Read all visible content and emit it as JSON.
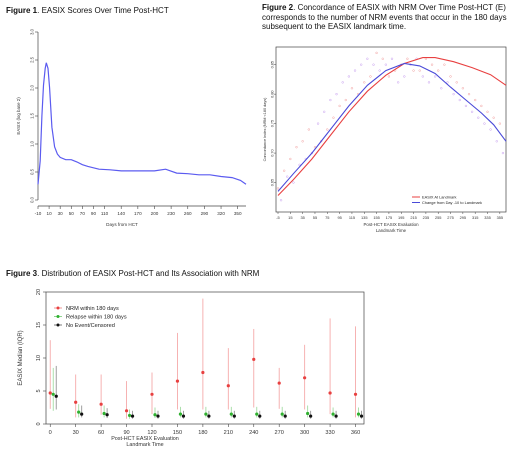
{
  "figure1": {
    "caption_label": "Figure 1",
    "caption_text": ". EASIX Scores Over Time Post-HCT",
    "chart_data": {
      "type": "line",
      "xlabel": "Days from HCT",
      "ylabel": "EASIX (log base 2)",
      "x_ticks": [
        "-10",
        "10",
        "30",
        "50",
        "70",
        "90",
        "110",
        "140",
        "170",
        "200",
        "230",
        "260",
        "290",
        "320",
        "350"
      ],
      "y_ticks": [
        "0.0",
        "0.5",
        "1.0",
        "1.5",
        "2.0",
        "2.5",
        "3.0"
      ],
      "xlim": [
        -10,
        365
      ],
      "ylim": [
        0,
        3.0
      ],
      "series": [
        {
          "color": "#5b5bf0",
          "x": [
            -10,
            -6,
            -3,
            0,
            3,
            5,
            8,
            11,
            15,
            20,
            25,
            30,
            40,
            50,
            60,
            70,
            80,
            100,
            120,
            140,
            160,
            180,
            200,
            220,
            240,
            260,
            280,
            300,
            320,
            340,
            355,
            365
          ],
          "y": [
            0.28,
            0.7,
            1.5,
            2.05,
            2.35,
            2.45,
            2.35,
            2.0,
            1.3,
            0.95,
            0.82,
            0.76,
            0.72,
            0.72,
            0.68,
            0.63,
            0.6,
            0.55,
            0.54,
            0.52,
            0.52,
            0.52,
            0.52,
            0.55,
            0.48,
            0.47,
            0.45,
            0.45,
            0.42,
            0.4,
            0.35,
            0.28
          ]
        }
      ]
    }
  },
  "figure2": {
    "caption_label": "Figure 2",
    "caption_text": ". Concordance of EASIX with NRM Over Time Post-HCT (E) corresponds to the number of NRM events that occur in the 180 days subsequent to the EASIX landmark time.",
    "chart_data": {
      "type": "line",
      "xlabel": "Post-HCT EASIX Evaluation",
      "xlabel2": "Landmark Time",
      "ylabel": "Concordance Index (NRM <180 days)",
      "x_ticks": [
        "-5",
        "15",
        "35",
        "55",
        "75",
        "95",
        "115",
        "135",
        "155",
        "175",
        "195",
        "215",
        "235",
        "255",
        "275",
        "295",
        "315",
        "335",
        "355"
      ],
      "y_ticks": [
        "0.65",
        "0.70",
        "0.75",
        "0.80",
        "0.85"
      ],
      "xlim": [
        -5,
        365
      ],
      "ylim": [
        0.6,
        0.88
      ],
      "legend_position": "bottom-right",
      "series": [
        {
          "name": "EASIX At Landmark",
          "color": "#e84040",
          "x": [
            -5,
            20,
            50,
            80,
            110,
            140,
            170,
            200,
            230,
            250,
            280,
            310,
            340,
            365
          ],
          "y": [
            0.628,
            0.655,
            0.69,
            0.73,
            0.77,
            0.805,
            0.832,
            0.852,
            0.862,
            0.862,
            0.855,
            0.845,
            0.833,
            0.815
          ]
        },
        {
          "name": "Change from Day -10 to Landmark",
          "color": "#4a4ad8",
          "x": [
            -5,
            20,
            50,
            80,
            110,
            140,
            170,
            200,
            225,
            250,
            275,
            300,
            325,
            345,
            365
          ],
          "y": [
            0.635,
            0.665,
            0.7,
            0.74,
            0.78,
            0.815,
            0.84,
            0.852,
            0.848,
            0.835,
            0.812,
            0.79,
            0.768,
            0.748,
            0.72
          ]
        }
      ],
      "scatter_points": [
        [
          -5,
          0.64
        ],
        [
          0,
          0.62
        ],
        [
          5,
          0.67
        ],
        [
          10,
          0.66
        ],
        [
          15,
          0.69
        ],
        [
          20,
          0.65
        ],
        [
          25,
          0.71
        ],
        [
          30,
          0.68
        ],
        [
          35,
          0.72
        ],
        [
          40,
          0.69
        ],
        [
          45,
          0.74
        ],
        [
          50,
          0.7
        ],
        [
          55,
          0.71
        ],
        [
          60,
          0.75
        ],
        [
          65,
          0.72
        ],
        [
          70,
          0.77
        ],
        [
          75,
          0.74
        ],
        [
          80,
          0.79
        ],
        [
          85,
          0.76
        ],
        [
          90,
          0.8
        ],
        [
          95,
          0.78
        ],
        [
          100,
          0.82
        ],
        [
          105,
          0.79
        ],
        [
          110,
          0.83
        ],
        [
          115,
          0.81
        ],
        [
          120,
          0.84
        ],
        [
          125,
          0.8
        ],
        [
          130,
          0.85
        ],
        [
          135,
          0.82
        ],
        [
          140,
          0.86
        ],
        [
          145,
          0.83
        ],
        [
          150,
          0.85
        ],
        [
          155,
          0.87
        ],
        [
          160,
          0.84
        ],
        [
          165,
          0.86
        ],
        [
          170,
          0.85
        ],
        [
          175,
          0.83
        ],
        [
          180,
          0.86
        ],
        [
          185,
          0.84
        ],
        [
          190,
          0.82
        ],
        [
          195,
          0.85
        ],
        [
          200,
          0.83
        ],
        [
          205,
          0.86
        ],
        [
          210,
          0.85
        ],
        [
          215,
          0.84
        ],
        [
          220,
          0.86
        ],
        [
          225,
          0.84
        ],
        [
          230,
          0.83
        ],
        [
          235,
          0.86
        ],
        [
          240,
          0.82
        ],
        [
          245,
          0.85
        ],
        [
          250,
          0.83
        ],
        [
          255,
          0.84
        ],
        [
          260,
          0.81
        ],
        [
          265,
          0.85
        ],
        [
          270,
          0.82
        ],
        [
          275,
          0.83
        ],
        [
          280,
          0.8
        ],
        [
          285,
          0.82
        ],
        [
          290,
          0.79
        ],
        [
          295,
          0.81
        ],
        [
          300,
          0.78
        ],
        [
          305,
          0.8
        ],
        [
          310,
          0.77
        ],
        [
          315,
          0.79
        ],
        [
          320,
          0.76
        ],
        [
          325,
          0.78
        ],
        [
          330,
          0.75
        ],
        [
          335,
          0.77
        ],
        [
          340,
          0.74
        ],
        [
          345,
          0.76
        ],
        [
          350,
          0.72
        ],
        [
          355,
          0.75
        ],
        [
          360,
          0.7
        ]
      ]
    }
  },
  "figure3": {
    "caption_label": "Figure 3",
    "caption_text": ". Distribution of EASIX Post-HCT and Its Association with NRM",
    "chart_data": {
      "type": "scatter",
      "xlabel": "Post-HCT EASIX Evaluation",
      "xlabel2": "Landmark Time",
      "ylabel": "EASIX Median (IQR)",
      "x_ticks": [
        "0",
        "30",
        "60",
        "90",
        "120",
        "150",
        "180",
        "210",
        "240",
        "270",
        "300",
        "330",
        "360"
      ],
      "y_ticks": [
        "0",
        "5",
        "10",
        "15",
        "20"
      ],
      "xlim": [
        -5,
        370
      ],
      "ylim": [
        0,
        20
      ],
      "legend_position": "top-left",
      "series": [
        {
          "name": "NRM within 180 days",
          "color": "#e84040",
          "offset": 0,
          "x": [
            0,
            30,
            60,
            90,
            120,
            150,
            180,
            210,
            240,
            270,
            300,
            330,
            360
          ],
          "median": [
            4.7,
            3.3,
            3.0,
            2.0,
            4.5,
            6.5,
            7.8,
            5.8,
            9.8,
            6.2,
            7.0,
            4.7,
            4.5
          ],
          "q1": [
            2.3,
            1.0,
            1.4,
            0.8,
            1.5,
            2.2,
            2.2,
            2.2,
            2.5,
            2.3,
            2.2,
            1.5,
            1.0
          ],
          "q3": [
            12.7,
            7.5,
            7.5,
            6.5,
            7.8,
            13.8,
            19.0,
            11.5,
            14.4,
            8.5,
            12.0,
            16.0,
            14.8
          ]
        },
        {
          "name": "Relapse within 180 days",
          "color": "#30b030",
          "offset": 3,
          "x": [
            0,
            30,
            60,
            90,
            120,
            150,
            180,
            210,
            240,
            270,
            300,
            330,
            360
          ],
          "median": [
            4.5,
            1.8,
            1.6,
            1.3,
            1.4,
            1.5,
            1.5,
            1.5,
            1.5,
            1.5,
            1.6,
            1.5,
            1.5
          ],
          "q1": [
            2.0,
            1.0,
            1.0,
            0.8,
            0.9,
            1.0,
            1.0,
            1.0,
            1.0,
            1.0,
            1.0,
            1.0,
            1.0
          ],
          "q3": [
            8.5,
            3.0,
            2.8,
            2.2,
            2.5,
            2.6,
            2.6,
            2.6,
            2.6,
            2.6,
            2.8,
            2.5,
            2.5
          ]
        },
        {
          "name": "No Event/Censored",
          "color": "#111111",
          "offset": 6,
          "x": [
            0,
            30,
            60,
            90,
            120,
            150,
            180,
            210,
            240,
            270,
            300,
            330,
            360
          ],
          "median": [
            4.2,
            1.5,
            1.4,
            1.2,
            1.2,
            1.2,
            1.2,
            1.2,
            1.2,
            1.2,
            1.2,
            1.2,
            1.2
          ],
          "q1": [
            2.2,
            1.0,
            0.9,
            0.8,
            0.8,
            0.8,
            0.8,
            0.8,
            0.8,
            0.8,
            0.8,
            0.8,
            0.8
          ],
          "q3": [
            8.8,
            2.8,
            2.4,
            2.0,
            2.0,
            2.0,
            2.0,
            2.0,
            2.0,
            2.0,
            2.0,
            2.0,
            2.0
          ]
        }
      ]
    }
  }
}
